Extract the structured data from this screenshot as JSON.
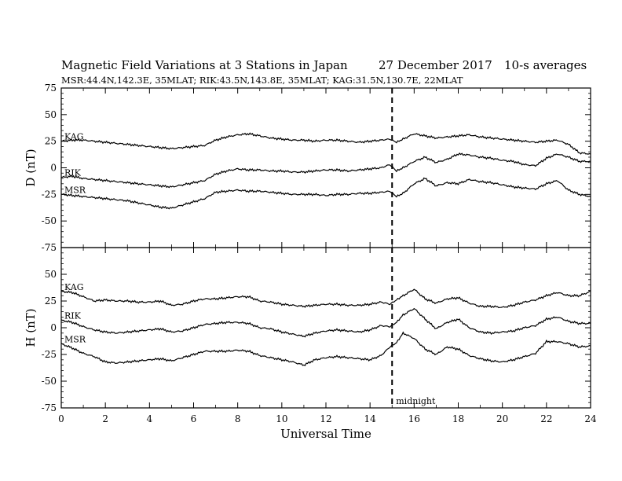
{
  "header": {
    "title": "Magnetic Field Variations at 3 Stations in Japan",
    "date": "27 December 2017",
    "averaging": "10-s averages",
    "stations_line": "MSR:44.4N,142.3E, 35MLAT;  RIK:43.5N,143.8E, 35MLAT;  KAG:31.5N,130.7E, 22MLAT"
  },
  "chart_data": [
    {
      "type": "line",
      "panel": "top",
      "ylabel": "D (nT)",
      "xlabel": "",
      "xlim": [
        0,
        24
      ],
      "ylim": [
        -75,
        75
      ],
      "yticks": [
        75,
        50,
        25,
        0,
        -25,
        -50,
        -75
      ],
      "xticks": [
        0,
        2,
        4,
        6,
        8,
        10,
        12,
        14,
        16,
        18,
        20,
        22,
        24
      ],
      "grid": false,
      "annotations": [
        {
          "x": 15,
          "style": "dashed-vertical"
        }
      ],
      "x": [
        0,
        0.5,
        1,
        1.5,
        2,
        2.5,
        3,
        3.5,
        4,
        4.5,
        5,
        5.5,
        6,
        6.5,
        7,
        7.5,
        8,
        8.5,
        9,
        9.5,
        10,
        10.5,
        11,
        11.5,
        12,
        12.5,
        13,
        13.5,
        14,
        14.5,
        14.9,
        15.2,
        15.5,
        16,
        16.5,
        17,
        17.5,
        18,
        18.5,
        19,
        19.5,
        20,
        20.5,
        21,
        21.5,
        22,
        22.5,
        23,
        23.5,
        24
      ],
      "series": [
        {
          "name": "KAG",
          "values": [
            25,
            26,
            26,
            25,
            24,
            23,
            22,
            21,
            20,
            19,
            18,
            19,
            20,
            21,
            26,
            29,
            31,
            32,
            30,
            28,
            27,
            26,
            26,
            25,
            26,
            26,
            25,
            24,
            25,
            26,
            27,
            24,
            27,
            32,
            30,
            28,
            29,
            30,
            31,
            29,
            28,
            27,
            26,
            25,
            24,
            25,
            26,
            22,
            14,
            13
          ]
        },
        {
          "name": "RIK",
          "values": [
            -9,
            -8,
            -10,
            -11,
            -12,
            -13,
            -14,
            -15,
            -16,
            -17,
            -18,
            -16,
            -14,
            -12,
            -6,
            -3,
            -1,
            -2,
            -2,
            -3,
            -3,
            -4,
            -4,
            -3,
            -2,
            -2,
            -3,
            -2,
            -1,
            0,
            3,
            -3,
            0,
            6,
            10,
            5,
            8,
            13,
            12,
            10,
            9,
            7,
            6,
            3,
            2,
            9,
            13,
            10,
            6,
            6
          ]
        },
        {
          "name": "MSR",
          "values": [
            -25,
            -26,
            -27,
            -28,
            -29,
            -30,
            -31,
            -33,
            -35,
            -37,
            -38,
            -35,
            -32,
            -29,
            -23,
            -22,
            -21,
            -22,
            -22,
            -23,
            -24,
            -25,
            -25,
            -25,
            -26,
            -25,
            -25,
            -24,
            -24,
            -23,
            -22,
            -27,
            -24,
            -15,
            -10,
            -17,
            -14,
            -15,
            -11,
            -13,
            -14,
            -16,
            -18,
            -19,
            -20,
            -15,
            -12,
            -21,
            -25,
            -27
          ]
        }
      ]
    },
    {
      "type": "line",
      "panel": "bottom",
      "ylabel": "H (nT)",
      "xlabel": "Universal Time",
      "xlim": [
        0,
        24
      ],
      "ylim": [
        -75,
        75
      ],
      "yticks": [
        50,
        25,
        0,
        -25,
        -50,
        -75
      ],
      "xticks": [
        0,
        2,
        4,
        6,
        8,
        10,
        12,
        14,
        16,
        18,
        20,
        22,
        24
      ],
      "grid": false,
      "annotations": [
        {
          "x": 15,
          "style": "dashed-vertical",
          "label": "midnight"
        }
      ],
      "x": [
        0,
        0.5,
        1,
        1.5,
        2,
        2.5,
        3,
        3.5,
        4,
        4.5,
        5,
        5.5,
        6,
        6.5,
        7,
        7.5,
        8,
        8.5,
        9,
        9.5,
        10,
        10.5,
        11,
        11.5,
        12,
        12.5,
        13,
        13.5,
        14,
        14.5,
        14.9,
        15.2,
        15.5,
        16,
        16.5,
        17,
        17.5,
        18,
        18.5,
        19,
        19.5,
        20,
        20.5,
        21,
        21.5,
        22,
        22.5,
        23,
        23.5,
        24
      ],
      "series": [
        {
          "name": "KAG",
          "values": [
            34,
            33,
            29,
            25,
            26,
            25,
            25,
            24,
            24,
            25,
            21,
            22,
            25,
            27,
            27,
            28,
            29,
            29,
            25,
            24,
            22,
            21,
            20,
            21,
            22,
            22,
            21,
            21,
            22,
            24,
            22,
            26,
            30,
            36,
            27,
            23,
            27,
            28,
            23,
            20,
            20,
            19,
            21,
            24,
            26,
            30,
            33,
            30,
            30,
            34
          ]
        },
        {
          "name": "RIK",
          "values": [
            7,
            5,
            1,
            -2,
            -4,
            -5,
            -4,
            -3,
            -2,
            -1,
            -4,
            -3,
            0,
            3,
            4,
            5,
            5,
            4,
            0,
            -1,
            -4,
            -6,
            -8,
            -5,
            -3,
            -2,
            -3,
            -4,
            -2,
            2,
            1,
            5,
            12,
            18,
            8,
            -1,
            5,
            8,
            0,
            -4,
            -5,
            -4,
            -3,
            0,
            2,
            8,
            10,
            6,
            4,
            4
          ]
        },
        {
          "name": "MSR",
          "values": [
            -15,
            -19,
            -24,
            -27,
            -32,
            -33,
            -32,
            -31,
            -30,
            -29,
            -31,
            -28,
            -25,
            -22,
            -22,
            -22,
            -21,
            -22,
            -26,
            -28,
            -30,
            -32,
            -35,
            -30,
            -28,
            -27,
            -28,
            -29,
            -30,
            -26,
            -18,
            -14,
            -5,
            -10,
            -20,
            -25,
            -18,
            -20,
            -26,
            -29,
            -31,
            -32,
            -30,
            -27,
            -24,
            -13,
            -13,
            -15,
            -18,
            -17
          ]
        }
      ]
    }
  ]
}
